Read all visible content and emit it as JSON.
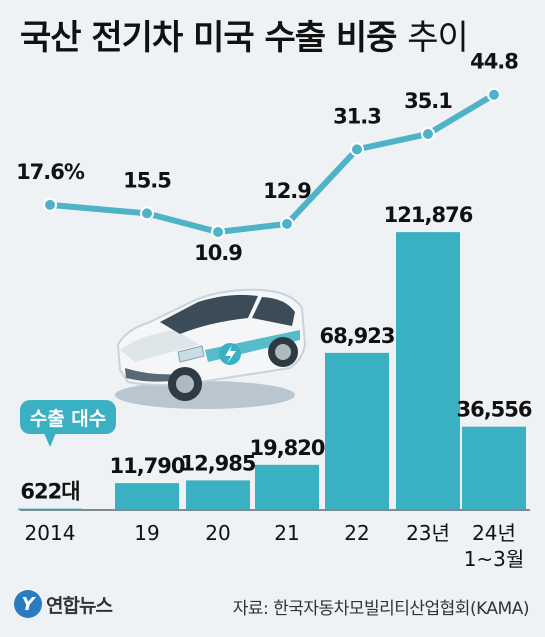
{
  "header": {
    "title_main": "국산 전기차 미국 수출 비중",
    "title_suffix": "추이"
  },
  "legend": {
    "badge_label": "수출 대수"
  },
  "footer": {
    "logo_mark": "Y",
    "logo_text": "연합뉴스",
    "source": "자료: 한국자동차모빌리티산업협회(KAMA)"
  },
  "colors": {
    "bar": "#3ab0c3",
    "line": "#4fb3c8",
    "background": "#eef2f5",
    "text": "#111111"
  },
  "illustration": {
    "icon": "white-electric-car"
  },
  "chart_data": {
    "type": "bar",
    "categories": [
      "2014",
      "19",
      "20",
      "21",
      "22",
      "23년",
      "24년\n1~3월"
    ],
    "series": [
      {
        "name": "수출 대수",
        "values": [
          622,
          11790,
          12985,
          19820,
          68923,
          121876,
          36556
        ],
        "labels": [
          "622대",
          "11,790",
          "12,985",
          "19,820",
          "68,923",
          "121,876",
          "36,556"
        ]
      },
      {
        "type": "line",
        "values": [
          17.6,
          15.5,
          10.9,
          12.9,
          31.3,
          35.1,
          44.8
        ],
        "labels": [
          "17.6%",
          "15.5",
          "10.9",
          "12.9",
          "31.3",
          "35.1",
          "44.8"
        ]
      }
    ],
    "ylim_bars": [
      0,
      125000
    ],
    "ylim_line": [
      0,
      50
    ],
    "grid": false,
    "legend": "left"
  }
}
